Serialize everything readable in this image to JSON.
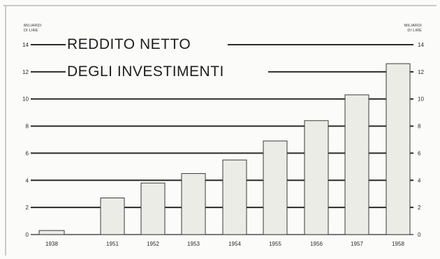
{
  "chart_data": {
    "type": "bar",
    "title_lines": [
      "REDDITO NETTO",
      "DEGLI INVESTIMENTI"
    ],
    "unit_left": [
      "MILIARDI",
      "DI LIRE"
    ],
    "unit_right": [
      "MILIARDI",
      "DI LIRE"
    ],
    "categories": [
      "1938",
      "1951",
      "1952",
      "1953",
      "1954",
      "1955",
      "1956",
      "1957",
      "1958"
    ],
    "values": [
      0.3,
      2.7,
      3.8,
      4.5,
      5.5,
      6.9,
      8.4,
      10.3,
      12.6
    ],
    "ylim": [
      0,
      14
    ],
    "yticks": [
      "0",
      "2",
      "4",
      "6",
      "8",
      "10",
      "12",
      "14"
    ],
    "grid": true,
    "colors": {
      "bar_fill": "#ecece6",
      "line": "#2a2a2a"
    }
  }
}
